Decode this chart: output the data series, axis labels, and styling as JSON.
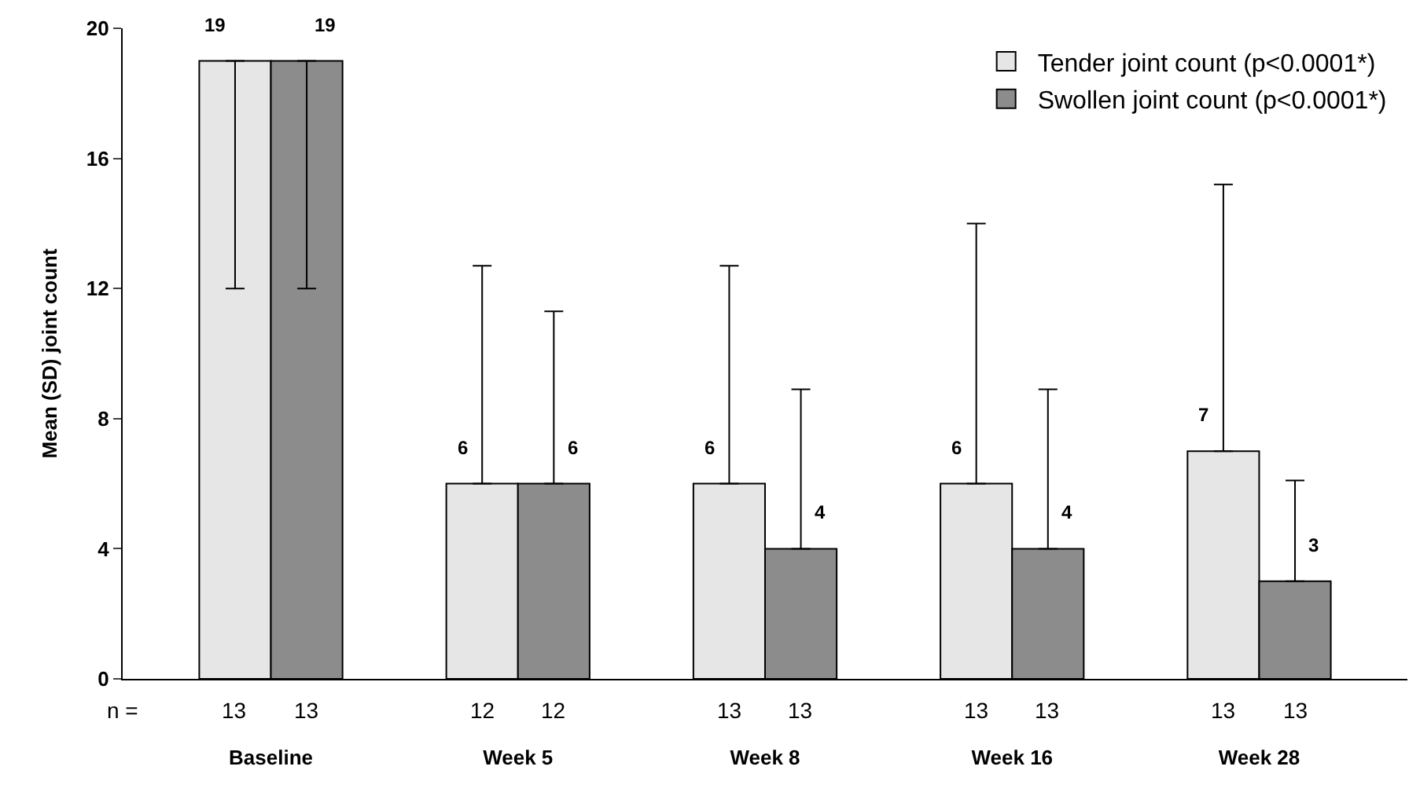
{
  "chart_data": {
    "type": "bar",
    "ylabel": "Mean (SD) joint count",
    "categories": [
      "Baseline",
      "Week 5",
      "Week 8",
      "Week 16",
      "Week 28"
    ],
    "series": [
      {
        "name": "Tender joint count (p<0.0001*)",
        "color": "#e6e6e6",
        "values": [
          19,
          6,
          6,
          6,
          7
        ],
        "errors": [
          [
            12,
            19
          ],
          [
            6,
            12.7
          ],
          [
            6,
            12.7
          ],
          [
            6,
            14.0
          ],
          [
            7,
            15.2
          ]
        ]
      },
      {
        "name": "Swollen joint count (p<0.0001*)",
        "color": "#8c8c8c",
        "values": [
          19,
          6,
          4,
          4,
          3
        ],
        "errors": [
          [
            12,
            19
          ],
          [
            6,
            11.3
          ],
          [
            4,
            8.9
          ],
          [
            4,
            8.9
          ],
          [
            3,
            6.1
          ]
        ]
      }
    ],
    "ylim": [
      0,
      20
    ],
    "yticks": [
      0,
      4,
      8,
      12,
      16,
      20
    ],
    "legend": "top right",
    "data_labels": true,
    "annotations": [
      "n =",
      "13",
      "13",
      "12",
      "12",
      "13",
      "13",
      "13",
      "13",
      "13",
      "13"
    ]
  }
}
